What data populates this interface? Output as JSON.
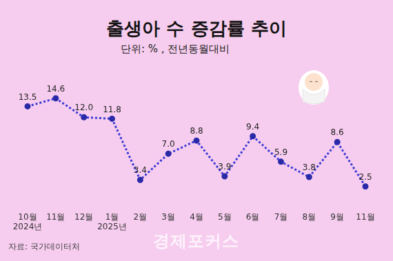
{
  "chart_data": {
    "type": "line",
    "title": "출생아 수 증감률 추이",
    "subtitle": "단위: % , 전년동월대비",
    "source": "자료: 국가데이터처",
    "watermark": "경제포커스",
    "categories": [
      [
        "10월",
        "2024년"
      ],
      "11월",
      "12월",
      [
        "1월",
        "2025년"
      ],
      "2월",
      "3월",
      "4월",
      "5월",
      "6월",
      "7월",
      "8월",
      "9월",
      "11월"
    ],
    "values": [
      13.5,
      14.6,
      12.0,
      11.8,
      3.4,
      7.0,
      8.8,
      3.9,
      9.4,
      5.9,
      3.8,
      8.6,
      2.5
    ],
    "value_labels": [
      "13.5",
      "14.6",
      "12.0",
      "11.8",
      "3.4",
      "7.0",
      "8.8",
      "3.9",
      "9.4",
      "5.9",
      "3.8",
      "8.6",
      "2.5"
    ],
    "color": "#3b3bd6",
    "marker": "circle",
    "line_style": "dotted",
    "ylim": [
      0,
      16
    ],
    "grid": false,
    "tick_labels": "x",
    "data_labels": true
  }
}
